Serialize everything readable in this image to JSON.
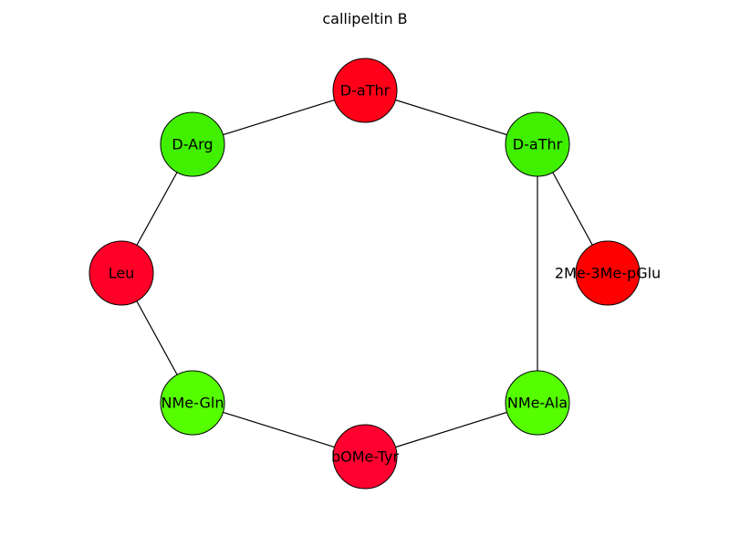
{
  "title": "callipeltin B",
  "nodes": [
    {
      "id": "n1",
      "label": "D-aThr",
      "color": "#ff0018"
    },
    {
      "id": "n2",
      "label": "D-aThr",
      "color": "#3ff000"
    },
    {
      "id": "n3",
      "label": "2Me-3Me-pGlu",
      "color": "#ff0000"
    },
    {
      "id": "n4",
      "label": "NMe-Ala",
      "color": "#55ff00"
    },
    {
      "id": "n5",
      "label": "bOMe-Tyr",
      "color": "#ff0030"
    },
    {
      "id": "n6",
      "label": "NMe-Gln",
      "color": "#55ff00"
    },
    {
      "id": "n7",
      "label": "Leu",
      "color": "#ff0028"
    },
    {
      "id": "n8",
      "label": "D-Arg",
      "color": "#40f000"
    }
  ],
  "edges": [
    [
      "n1",
      "n2"
    ],
    [
      "n2",
      "n3"
    ],
    [
      "n2",
      "n4"
    ],
    [
      "n4",
      "n5"
    ],
    [
      "n5",
      "n6"
    ],
    [
      "n6",
      "n7"
    ],
    [
      "n7",
      "n8"
    ],
    [
      "n8",
      "n1"
    ]
  ]
}
